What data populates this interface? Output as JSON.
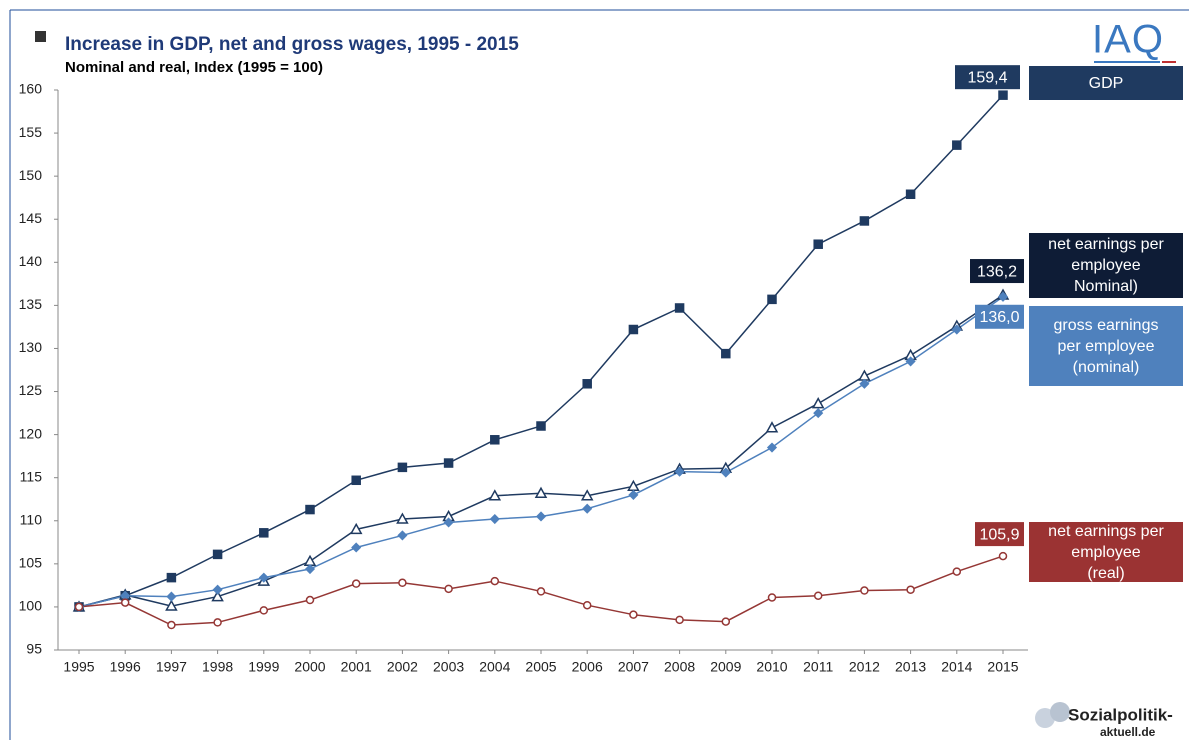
{
  "chart_data": {
    "type": "line",
    "title": "Increase in GDP, net and gross wages, 1995 - 2015",
    "subtitle": "Nominal and real, Index (1995 = 100)",
    "logo_top": "IAQ",
    "logo_bottom": [
      "Sozialpolitik-",
      "aktuell.de"
    ],
    "categories": [
      "1995",
      "1996",
      "1997",
      "1998",
      "1999",
      "2000",
      "2001",
      "2002",
      "2003",
      "2004",
      "2005",
      "2006",
      "2007",
      "2008",
      "2009",
      "2010",
      "2011",
      "2012",
      "2013",
      "2014",
      "2015"
    ],
    "ylim": [
      95,
      160
    ],
    "yticks": [
      95,
      100,
      105,
      110,
      115,
      120,
      125,
      130,
      135,
      140,
      145,
      150,
      155,
      160
    ],
    "grid": false,
    "legend": "right",
    "series": [
      {
        "name": "GDP",
        "color": "#1f3a60",
        "box_color": "#1f3a60",
        "marker": "square",
        "values": [
          100,
          101.3,
          103.4,
          106.1,
          108.6,
          111.3,
          114.7,
          116.2,
          116.7,
          119.4,
          121.0,
          125.9,
          132.2,
          134.7,
          129.4,
          135.7,
          142.1,
          144.8,
          147.9,
          153.6,
          159.4
        ],
        "value_labels": [
          null,
          null,
          null,
          null,
          null,
          null,
          null,
          null,
          null,
          null,
          null,
          null,
          null,
          null,
          null,
          null,
          null,
          null,
          null,
          null,
          "159,4"
        ]
      },
      {
        "name": "net earnings per\nemployee\nNominal)",
        "color": "#1f3a60",
        "box_color": "#0e1c36",
        "marker": "triangle",
        "values": [
          100,
          101.4,
          100.1,
          101.2,
          103.0,
          105.3,
          109.0,
          110.2,
          110.5,
          112.9,
          113.2,
          112.9,
          114.0,
          116.0,
          116.1,
          120.8,
          123.6,
          126.8,
          129.2,
          132.6,
          136.2
        ],
        "value_labels": [
          null,
          null,
          null,
          null,
          null,
          null,
          null,
          null,
          null,
          null,
          null,
          null,
          null,
          null,
          null,
          null,
          null,
          null,
          null,
          null,
          "136,2"
        ]
      },
      {
        "name": "gross earnings\nper employee\n(nominal)",
        "color": "#4f81bd",
        "box_color": "#4f81bd",
        "marker": "diamond",
        "values": [
          100,
          101.3,
          101.2,
          102.0,
          103.4,
          104.4,
          106.9,
          108.3,
          109.8,
          110.2,
          110.5,
          111.4,
          113.0,
          115.7,
          115.6,
          118.5,
          122.5,
          125.9,
          128.5,
          132.2,
          136.0
        ],
        "value_labels": [
          null,
          null,
          null,
          null,
          null,
          null,
          null,
          null,
          null,
          null,
          null,
          null,
          null,
          null,
          null,
          null,
          null,
          null,
          null,
          null,
          "136,0"
        ]
      },
      {
        "name": "net earnings per\nemployee\n(real)",
        "color": "#953735",
        "box_color": "#9b3333",
        "marker": "circle",
        "values": [
          100,
          100.5,
          97.9,
          98.2,
          99.6,
          100.8,
          102.7,
          102.8,
          102.1,
          103.0,
          101.8,
          100.2,
          99.1,
          98.5,
          98.3,
          101.1,
          101.3,
          101.9,
          102.0,
          104.1,
          105.9
        ],
        "value_labels": [
          null,
          null,
          null,
          null,
          null,
          null,
          null,
          null,
          null,
          null,
          null,
          null,
          null,
          null,
          null,
          null,
          null,
          null,
          null,
          null,
          "105,9"
        ]
      }
    ]
  }
}
